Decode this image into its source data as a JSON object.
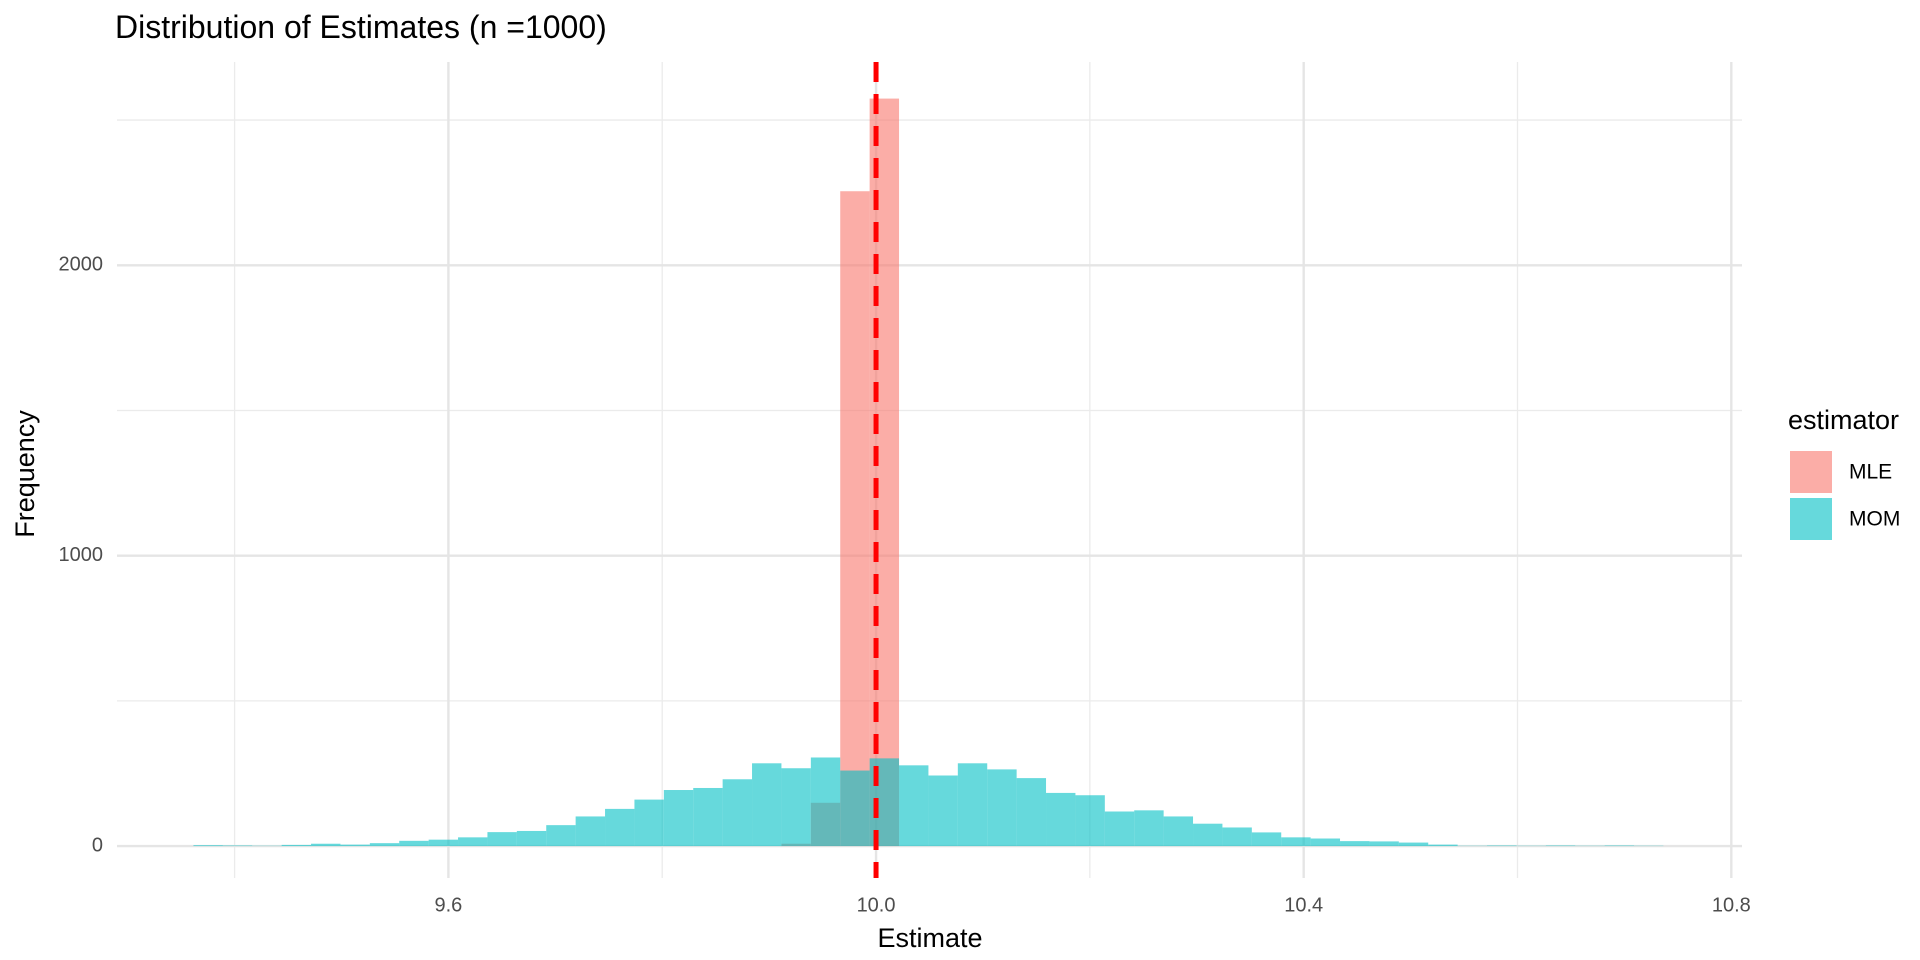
{
  "chart_data": {
    "type": "histogram",
    "title": "Distribution of Estimates (n =1000)",
    "x_label": "Estimate",
    "y_label": "Frequency",
    "bins": [
      9.3615,
      9.389,
      9.4165,
      9.444,
      9.4715,
      9.499,
      9.5265,
      9.554,
      9.5815,
      9.609,
      9.6365,
      9.664,
      9.6915,
      9.719,
      9.7465,
      9.774,
      9.8015,
      9.829,
      9.8565,
      9.884,
      9.9115,
      9.939,
      9.9665,
      9.994,
      10.0215,
      10.049,
      10.0765,
      10.104,
      10.1315,
      10.159,
      10.1865,
      10.214,
      10.2415,
      10.269,
      10.2965,
      10.324,
      10.3515,
      10.379,
      10.4065,
      10.434,
      10.4615,
      10.489,
      10.5165,
      10.544,
      10.5715,
      10.599,
      10.6265,
      10.654,
      10.6815,
      10.709,
      10.7365
    ],
    "series": [
      {
        "name": "MLE",
        "color": "#F8766D",
        "values": [
          0,
          0,
          0,
          0,
          0,
          0,
          0,
          0,
          0,
          0,
          0,
          0,
          0,
          0,
          0,
          0,
          0,
          0,
          0,
          0,
          8,
          149,
          2255,
          2574,
          0,
          0,
          0,
          0,
          0,
          0,
          0,
          0,
          0,
          0,
          0,
          0,
          0,
          0,
          0,
          0,
          0,
          0,
          0,
          0,
          0,
          0,
          0,
          0,
          0,
          0
        ]
      },
      {
        "name": "MOM",
        "color": "#00BFC4",
        "values": [
          3,
          2,
          1,
          4,
          8,
          5,
          10,
          18,
          22,
          30,
          48,
          52,
          72,
          102,
          128,
          160,
          193,
          200,
          230,
          285,
          268,
          305,
          260,
          302,
          278,
          243,
          285,
          264,
          234,
          183,
          175,
          119,
          123,
          102,
          77,
          64,
          47,
          30,
          26,
          17,
          16,
          12,
          5,
          1,
          2,
          1,
          2,
          1,
          2,
          1
        ]
      }
    ],
    "opacity": 0.6,
    "reference_line": {
      "x": 10,
      "color": "#FF0000",
      "dashed": true
    },
    "xlim": [
      9.29,
      10.81
    ],
    "ylim": [
      -110,
      2700
    ],
    "xticks": [
      9.6,
      {
        "value": 10,
        "label": "10.0"
      },
      10.4,
      10.8
    ],
    "yticks": [
      0,
      1000,
      2000
    ],
    "x_minor_ticks": [
      9.4,
      9.8,
      10.2,
      10.6
    ],
    "y_minor_ticks": [
      500,
      1500,
      2500
    ],
    "grid": true,
    "legend_title": "estimator",
    "legend_position": "right"
  }
}
